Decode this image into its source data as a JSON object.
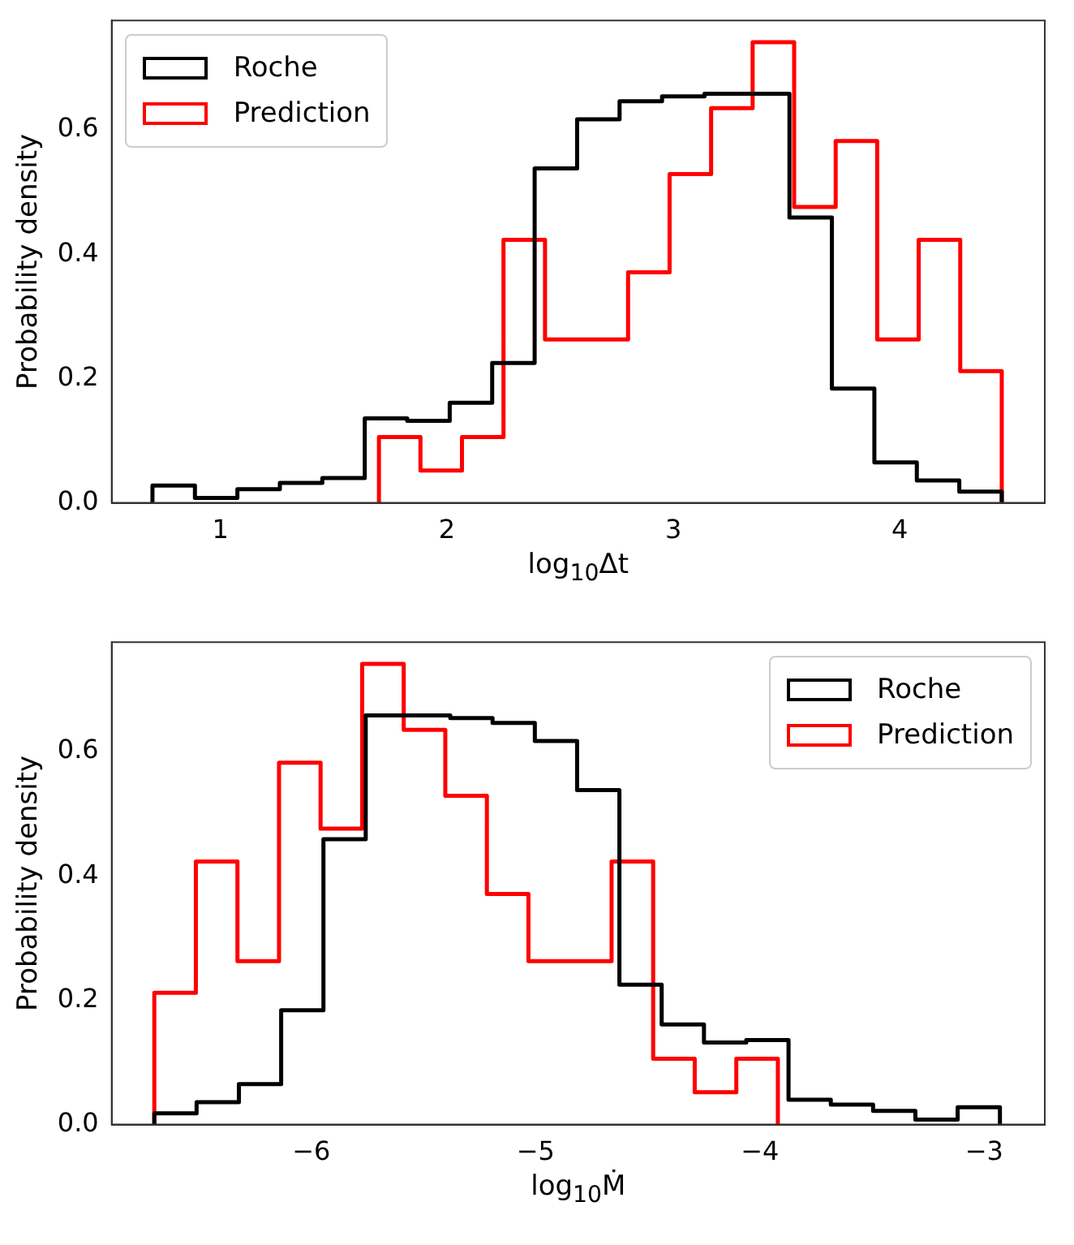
{
  "chart_data": [
    {
      "type": "step",
      "ylabel": "Probability density",
      "xlabel": "log$_{10}$Δt",
      "legend": "top left",
      "grid": false,
      "xlim": [
        0.52,
        4.64
      ],
      "ylim": [
        0,
        0.776
      ],
      "xticks": [
        1,
        2,
        3,
        4
      ],
      "yticks": [
        {
          "value": 0,
          "label": "0.0"
        },
        {
          "value": 0.2,
          "label": "0.2"
        },
        {
          "value": 0.4,
          "label": "0.4"
        },
        {
          "value": 0.6,
          "label": "0.6"
        }
      ],
      "series": [
        {
          "name": "Roche",
          "color": "#000000",
          "x": [
            0.7,
            0.7,
            0.8875,
            1.075,
            1.2625,
            1.45,
            1.6375,
            1.825,
            2.0125,
            2.2,
            2.3875,
            2.575,
            2.7625,
            2.95,
            3.1375,
            3.325,
            3.5125,
            3.7,
            3.8875,
            4.075,
            4.2625,
            4.45
          ],
          "values": [
            0,
            0.028,
            0.008,
            0.022,
            0.032,
            0.04,
            0.136,
            0.132,
            0.161,
            0.225,
            0.538,
            0.617,
            0.646,
            0.654,
            0.658,
            0.658,
            0.459,
            0.184,
            0.065,
            0.036,
            0.018,
            0
          ]
        },
        {
          "name": "Prediction",
          "color": "#ff0000",
          "x": [
            1.7,
            1.7,
            1.8833,
            2.0667,
            2.25,
            2.4333,
            2.6167,
            2.8,
            2.9833,
            3.1667,
            3.35,
            3.5333,
            3.7167,
            3.9,
            4.0833,
            4.2667,
            4.45
          ],
          "values": [
            0,
            0.106,
            0.052,
            0.106,
            0.423,
            0.263,
            0.263,
            0.371,
            0.529,
            0.635,
            0.741,
            0.476,
            0.582,
            0.263,
            0.423,
            0.212,
            0
          ]
        }
      ]
    },
    {
      "type": "step",
      "ylabel": "Probability density",
      "xlabel": "log$_{10}$Ṁ",
      "legend": "top right",
      "grid": false,
      "xlim": [
        -6.89,
        -2.73
      ],
      "ylim": [
        0,
        0.776
      ],
      "xticks": [
        {
          "value": -6,
          "label": "−6"
        },
        {
          "value": -5,
          "label": "−5"
        },
        {
          "value": -4,
          "label": "−4"
        },
        {
          "value": -3,
          "label": "−3"
        }
      ],
      "yticks": [
        {
          "value": 0,
          "label": "0.0"
        },
        {
          "value": 0.2,
          "label": "0.2"
        },
        {
          "value": 0.4,
          "label": "0.4"
        },
        {
          "value": 0.6,
          "label": "0.6"
        }
      ],
      "series": [
        {
          "name": "Roche",
          "color": "#000000",
          "x": [
            -6.7,
            -6.7,
            -6.5115,
            -6.323,
            -6.1345,
            -5.946,
            -5.7575,
            -5.569,
            -5.3805,
            -5.192,
            -5.0035,
            -4.815,
            -4.6265,
            -4.438,
            -4.2495,
            -4.061,
            -3.8725,
            -3.684,
            -3.4955,
            -3.307,
            -3.1185,
            -2.93
          ],
          "values": [
            0,
            0.018,
            0.036,
            0.065,
            0.184,
            0.459,
            0.658,
            0.658,
            0.654,
            0.646,
            0.617,
            0.538,
            0.225,
            0.161,
            0.132,
            0.136,
            0.04,
            0.032,
            0.022,
            0.008,
            0.028,
            0
          ]
        },
        {
          "name": "Prediction",
          "color": "#ff0000",
          "x": [
            -6.7,
            -6.7,
            -6.5147,
            -6.3293,
            -6.144,
            -5.9587,
            -5.7733,
            -5.588,
            -5.4027,
            -5.2173,
            -5.032,
            -4.8467,
            -4.6613,
            -4.476,
            -4.2907,
            -4.1053,
            -3.92
          ],
          "values": [
            0,
            0.212,
            0.423,
            0.263,
            0.582,
            0.476,
            0.741,
            0.635,
            0.529,
            0.371,
            0.263,
            0.263,
            0.423,
            0.106,
            0.052,
            0.106,
            0
          ]
        }
      ]
    }
  ]
}
